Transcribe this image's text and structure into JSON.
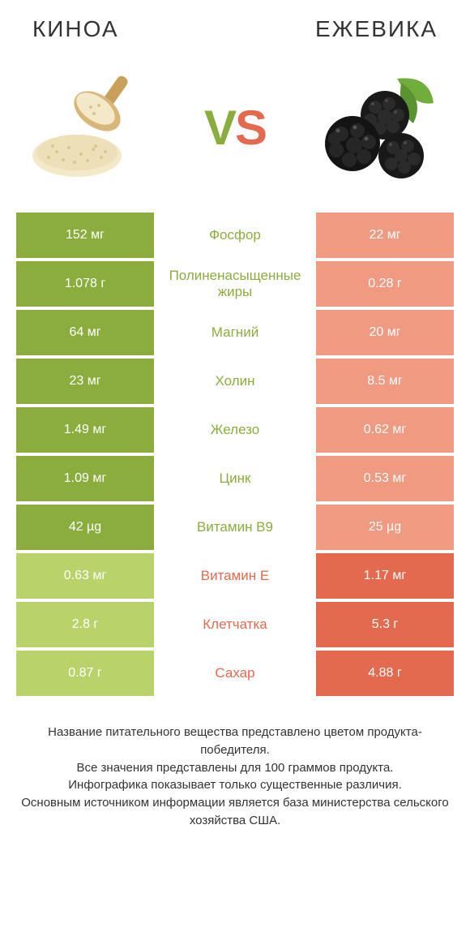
{
  "colors": {
    "green": "#8aad3e",
    "green_light": "#b8d36a",
    "orange": "#e36a4f",
    "orange_light": "#f09a82",
    "white": "#ffffff",
    "text": "#333333"
  },
  "header": {
    "left_title": "КИНОА",
    "right_title": "ЕЖЕВИКА"
  },
  "vs": {
    "v": "V",
    "s": "S"
  },
  "rows": [
    {
      "left": "152 мг",
      "mid": "Фосфор",
      "right": "22 мг",
      "winner": "left"
    },
    {
      "left": "1.078 г",
      "mid": "Полиненасыщенные жиры",
      "right": "0.28 г",
      "winner": "left"
    },
    {
      "left": "64 мг",
      "mid": "Магний",
      "right": "20 мг",
      "winner": "left"
    },
    {
      "left": "23 мг",
      "mid": "Холин",
      "right": "8.5 мг",
      "winner": "left"
    },
    {
      "left": "1.49 мг",
      "mid": "Железо",
      "right": "0.62 мг",
      "winner": "left"
    },
    {
      "left": "1.09 мг",
      "mid": "Цинк",
      "right": "0.53 мг",
      "winner": "left"
    },
    {
      "left": "42 µg",
      "mid": "Витамин B9",
      "right": "25 µg",
      "winner": "left"
    },
    {
      "left": "0.63 мг",
      "mid": "Витамин E",
      "right": "1.17 мг",
      "winner": "right"
    },
    {
      "left": "2.8 г",
      "mid": "Клетчатка",
      "right": "5.3 г",
      "winner": "right"
    },
    {
      "left": "0.87 г",
      "mid": "Сахар",
      "right": "4.88 г",
      "winner": "right"
    }
  ],
  "footer": {
    "line1": "Название питательного вещества представлено цветом продукта-победителя.",
    "line2": "Все значения представлены для 100 граммов продукта.",
    "line3": "Инфографика показывает только существенные различия.",
    "line4": "Основным источником информации является база министерства сельского хозяйства США."
  }
}
